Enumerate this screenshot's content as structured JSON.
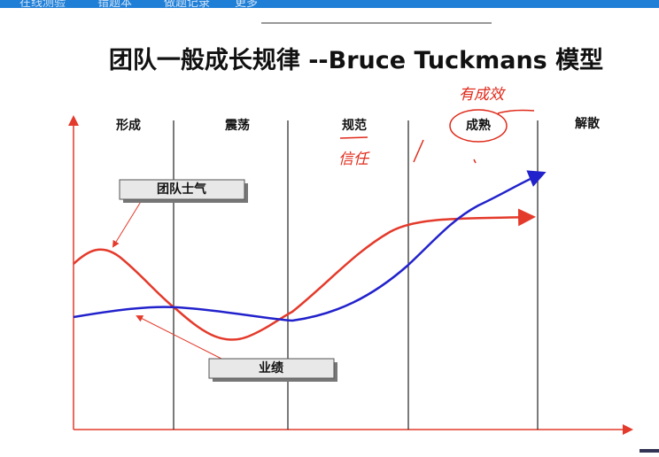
{
  "nav": {
    "items": [
      "在线测验",
      "错题本",
      "做题记录",
      "更多"
    ]
  },
  "slide": {
    "title": "团队一般成长规律 --Bruce Tuckmans 模型",
    "stages": [
      "形成",
      "震荡",
      "规范",
      "成熟",
      "解散"
    ],
    "curves": [
      {
        "label": "团队士气"
      },
      {
        "label": "业绩"
      }
    ],
    "annotations": [
      "有成效",
      "信任"
    ]
  }
}
